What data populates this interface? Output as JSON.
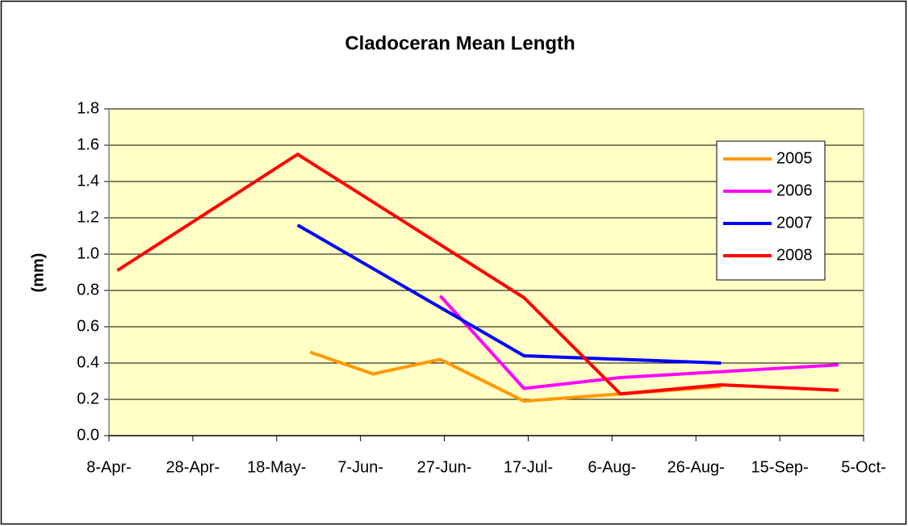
{
  "chart_data": {
    "type": "line",
    "title": "Cladoceran Mean Length",
    "y_label": "(mm)",
    "xlim": [
      98,
      278
    ],
    "xticks": [
      {
        "value": 98,
        "label": "8-Apr-"
      },
      {
        "value": 118,
        "label": "28-Apr-"
      },
      {
        "value": 138,
        "label": "18-May-"
      },
      {
        "value": 158,
        "label": "7-Jun-"
      },
      {
        "value": 178,
        "label": "27-Jun-"
      },
      {
        "value": 198,
        "label": "17-Jul-"
      },
      {
        "value": 218,
        "label": "6-Aug-"
      },
      {
        "value": 238,
        "label": "26-Aug-"
      },
      {
        "value": 258,
        "label": "15-Sep-"
      },
      {
        "value": 278,
        "label": "5-Oct-"
      }
    ],
    "ylim": [
      0,
      1.8
    ],
    "yticks": [
      {
        "value": 0,
        "label": "0.0"
      },
      0.2,
      0.4,
      0.6,
      0.8,
      {
        "value": 1,
        "label": "1.0"
      },
      1.2,
      1.4,
      1.6,
      1.8
    ],
    "grid": true,
    "legend": "right",
    "plot_background": "#ffffc6",
    "series": [
      {
        "name": "2005",
        "color": "#ff9900",
        "x": [
          146,
          161,
          177,
          197,
          220,
          244
        ],
        "values": [
          0.46,
          0.34,
          0.42,
          0.19,
          0.23,
          0.27
        ]
      },
      {
        "name": "2006",
        "color": "#ff00ff",
        "x": [
          177,
          197,
          220,
          272
        ],
        "values": [
          0.77,
          0.26,
          0.32,
          0.39
        ]
      },
      {
        "name": "2007",
        "color": "#0000ff",
        "x": [
          143,
          197,
          244
        ],
        "values": [
          1.16,
          0.44,
          0.4
        ]
      },
      {
        "name": "2008",
        "color": "#ff0000",
        "x": [
          100,
          143,
          197,
          220,
          244,
          272
        ],
        "values": [
          0.91,
          1.55,
          0.76,
          0.23,
          0.28,
          0.25
        ]
      }
    ]
  }
}
